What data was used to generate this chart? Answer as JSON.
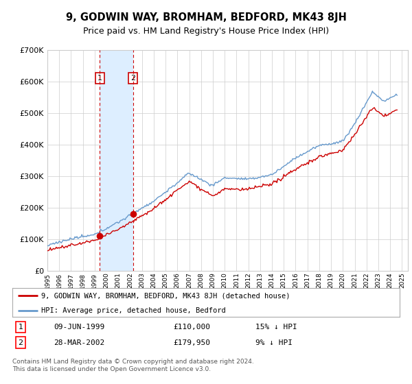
{
  "title": "9, GODWIN WAY, BROMHAM, BEDFORD, MK43 8JH",
  "subtitle": "Price paid vs. HM Land Registry's House Price Index (HPI)",
  "legend_line1": "9, GODWIN WAY, BROMHAM, BEDFORD, MK43 8JH (detached house)",
  "legend_line2": "HPI: Average price, detached house, Bedford",
  "transaction1_date": "09-JUN-1999",
  "transaction1_price": "£110,000",
  "transaction1_hpi": "15% ↓ HPI",
  "transaction2_date": "28-MAR-2002",
  "transaction2_price": "£179,950",
  "transaction2_hpi": "9% ↓ HPI",
  "footer": "Contains HM Land Registry data © Crown copyright and database right 2024.\nThis data is licensed under the Open Government Licence v3.0.",
  "red_color": "#cc0000",
  "blue_color": "#6699cc",
  "highlight_color": "#ddeeff",
  "grid_color": "#cccccc",
  "background_color": "#ffffff",
  "ylim": [
    0,
    700000
  ],
  "yticks": [
    0,
    100000,
    200000,
    300000,
    400000,
    500000,
    600000,
    700000
  ],
  "sale1_year": 1999.44,
  "sale1_price": 110000,
  "sale2_year": 2002.24,
  "sale2_price": 179950,
  "xmin": 1995.0,
  "xmax": 2025.5
}
